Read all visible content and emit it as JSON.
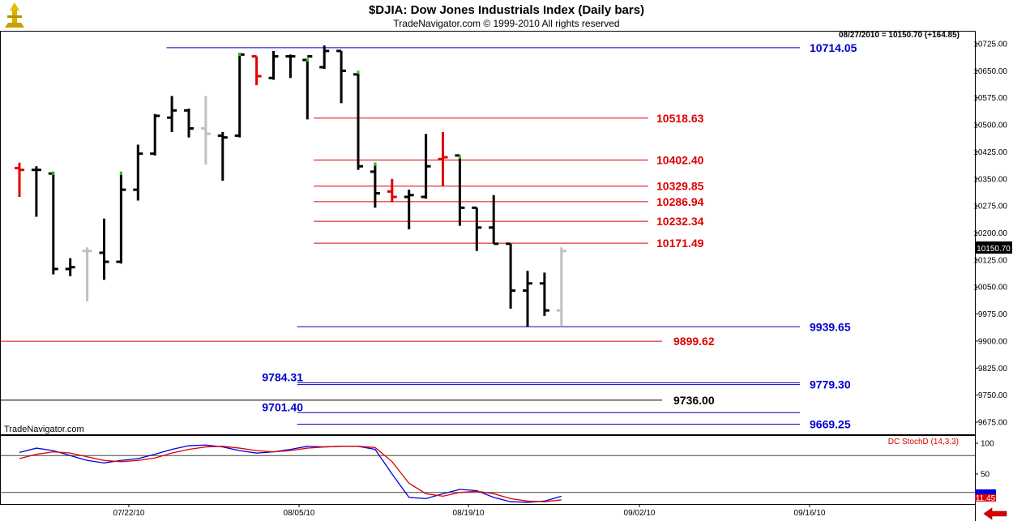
{
  "header": {
    "title": "$DJIA:  Dow Jones Industrials Index  (Daily bars)",
    "subtitle": "TradeNavigator.com © 1999-2010 All rights reserved",
    "last_quote": "08/27/2010 = 10150.70 (+164.85)",
    "watermark": "TradeNavigator.com"
  },
  "colors": {
    "up_bar": "#000000",
    "down_bar": "#000000",
    "red_bar": "#e00000",
    "gray_bar": "#c0c0c0",
    "level_blue": "#0000cc",
    "level_red": "#dd0000",
    "level_black": "#000000",
    "stoch_k": "#0000dd",
    "stoch_d": "#dd0000",
    "brand_icon": "#c8a000"
  },
  "chart_data": [
    {
      "type": "ohlc",
      "title": "$DJIA:  Dow Jones Industrials Index  (Daily bars)",
      "ylim": [
        9650,
        10745
      ],
      "y_ticks": [
        10725,
        10650,
        10575,
        10500,
        10425,
        10350,
        10275,
        10200,
        10125,
        10050,
        9975,
        9900,
        9825,
        9750,
        9675
      ],
      "y_tick_labels": [
        "10725.00",
        "10650.00",
        "10575.00",
        "10500.00",
        "10425.00",
        "10350.00",
        "10275.00",
        "10200.00",
        "10125.00",
        "10050.00",
        "9975.00",
        "9900.00",
        "9825.00",
        "9750.00",
        "9675.00"
      ],
      "x_labels": [
        "07/22/10",
        "08/05/10",
        "08/19/10",
        "09/02/10",
        "09/16/10"
      ],
      "last_price_label": "10150.70",
      "bars": [
        {
          "o": 10380,
          "h": 10395,
          "l": 10300,
          "c": 10375,
          "color": "red"
        },
        {
          "o": 10375,
          "h": 10385,
          "l": 10245,
          "c": 10375,
          "color": "black"
        },
        {
          "o": 10365,
          "h": 10370,
          "l": 10085,
          "c": 10100,
          "color": "black",
          "tick": "green"
        },
        {
          "o": 10100,
          "h": 10130,
          "l": 10080,
          "c": 10105,
          "color": "black"
        },
        {
          "o": 10150,
          "h": 10160,
          "l": 10010,
          "c": 10150,
          "color": "gray"
        },
        {
          "o": 10145,
          "h": 10240,
          "l": 10070,
          "c": 10120,
          "color": "black"
        },
        {
          "o": 10120,
          "h": 10370,
          "l": 10115,
          "c": 10320,
          "color": "black",
          "tick": "green"
        },
        {
          "o": 10320,
          "h": 10445,
          "l": 10290,
          "c": 10420,
          "color": "black"
        },
        {
          "o": 10420,
          "h": 10530,
          "l": 10415,
          "c": 10525,
          "color": "black"
        },
        {
          "o": 10520,
          "h": 10580,
          "l": 10480,
          "c": 10540,
          "color": "black"
        },
        {
          "o": 10540,
          "h": 10545,
          "l": 10465,
          "c": 10490,
          "color": "black"
        },
        {
          "o": 10490,
          "h": 10580,
          "l": 10390,
          "c": 10475,
          "color": "gray"
        },
        {
          "o": 10470,
          "h": 10480,
          "l": 10345,
          "c": 10465,
          "color": "black"
        },
        {
          "o": 10470,
          "h": 10700,
          "l": 10465,
          "c": 10695,
          "color": "black",
          "tick": "green"
        },
        {
          "o": 10690,
          "h": 10690,
          "l": 10610,
          "c": 10635,
          "color": "red"
        },
        {
          "o": 10630,
          "h": 10705,
          "l": 10625,
          "c": 10690,
          "color": "black"
        },
        {
          "o": 10690,
          "h": 10695,
          "l": 10630,
          "c": 10690,
          "color": "black"
        },
        {
          "o": 10680,
          "h": 10685,
          "l": 10515,
          "c": 10690,
          "color": "black",
          "tick": "green"
        },
        {
          "o": 10660,
          "h": 10720,
          "l": 10655,
          "c": 10705,
          "color": "black"
        },
        {
          "o": 10705,
          "h": 10705,
          "l": 10560,
          "c": 10650,
          "color": "black"
        },
        {
          "o": 10640,
          "h": 10650,
          "l": 10375,
          "c": 10385,
          "color": "black",
          "tick": "green"
        },
        {
          "o": 10370,
          "h": 10395,
          "l": 10270,
          "c": 10310,
          "color": "black",
          "tick": "green"
        },
        {
          "o": 10315,
          "h": 10350,
          "l": 10285,
          "c": 10300,
          "color": "red"
        },
        {
          "o": 10300,
          "h": 10320,
          "l": 10210,
          "c": 10305,
          "color": "black"
        },
        {
          "o": 10300,
          "h": 10475,
          "l": 10295,
          "c": 10385,
          "color": "black"
        },
        {
          "o": 10405,
          "h": 10480,
          "l": 10330,
          "c": 10410,
          "color": "red"
        },
        {
          "o": 10415,
          "h": 10415,
          "l": 10220,
          "c": 10270,
          "color": "black",
          "tick": "green"
        },
        {
          "o": 10270,
          "h": 10270,
          "l": 10150,
          "c": 10215,
          "color": "black"
        },
        {
          "o": 10215,
          "h": 10305,
          "l": 10170,
          "c": 10170,
          "color": "black"
        },
        {
          "o": 10170,
          "h": 10170,
          "l": 9990,
          "c": 10040,
          "color": "black"
        },
        {
          "o": 10040,
          "h": 10095,
          "l": 9940,
          "c": 10060,
          "color": "black"
        },
        {
          "o": 10060,
          "h": 10090,
          "l": 9970,
          "c": 9985,
          "color": "black"
        },
        {
          "o": 9985,
          "h": 10160,
          "l": 9940,
          "c": 10150,
          "color": "gray"
        }
      ],
      "levels": [
        {
          "value": 10714.05,
          "label": "10714.05",
          "color": "blue",
          "x_start": 0.17,
          "label_side": "right"
        },
        {
          "value": 10518.63,
          "label": "10518.63",
          "color": "red",
          "x_start": 0.321,
          "label_side": "mid"
        },
        {
          "value": 10402.4,
          "label": "10402.40",
          "color": "red",
          "x_start": 0.321,
          "label_side": "mid"
        },
        {
          "value": 10329.85,
          "label": "10329.85",
          "color": "red",
          "x_start": 0.321,
          "label_side": "mid"
        },
        {
          "value": 10286.94,
          "label": "10286.94",
          "color": "red",
          "x_start": 0.321,
          "label_side": "mid"
        },
        {
          "value": 10232.34,
          "label": "10232.34",
          "color": "red",
          "x_start": 0.321,
          "label_side": "mid"
        },
        {
          "value": 10171.49,
          "label": "10171.49",
          "color": "red",
          "x_start": 0.321,
          "label_side": "mid"
        },
        {
          "value": 9939.65,
          "label": "9939.65",
          "color": "blue",
          "x_start": 0.304,
          "label_side": "right"
        },
        {
          "value": 9899.62,
          "label": "9899.62",
          "color": "red",
          "x_start": 0.0,
          "label_side": "mid2"
        },
        {
          "value": 9784.31,
          "label": "9784.31",
          "color": "blue",
          "x_start": 0.304,
          "label_side": "left"
        },
        {
          "value": 9779.3,
          "label": "9779.30",
          "color": "blue",
          "x_start": 0.304,
          "label_side": "right"
        },
        {
          "value": 9736.0,
          "label": "9736.00",
          "color": "black",
          "x_start": 0.0,
          "label_side": "mid2"
        },
        {
          "value": 9701.4,
          "label": "9701.40",
          "color": "blue",
          "x_start": 0.304,
          "label_side": "left"
        },
        {
          "value": 9669.25,
          "label": "9669.25",
          "color": "blue",
          "x_start": 0.304,
          "label_side": "right"
        }
      ]
    },
    {
      "type": "line",
      "title": "DC StochD (14,3,3)",
      "ylim": [
        0,
        115
      ],
      "y_tick_labels": [
        "100",
        "50"
      ],
      "y_ticks": [
        100,
        50
      ],
      "reference_lines": [
        80,
        20
      ],
      "last_value_label": "11.45",
      "series": [
        {
          "key": "k",
          "values": [
            85,
            92,
            88,
            80,
            72,
            68,
            72,
            75,
            82,
            90,
            96,
            97,
            94,
            88,
            84,
            86,
            90,
            95,
            94,
            95,
            95,
            90,
            50,
            12,
            10,
            18,
            25,
            23,
            12,
            5,
            4,
            6,
            14
          ]
        },
        {
          "key": "d",
          "values": [
            75,
            82,
            86,
            84,
            78,
            72,
            70,
            72,
            76,
            84,
            90,
            94,
            95,
            92,
            88,
            86,
            88,
            92,
            94,
            95,
            95,
            93,
            70,
            35,
            18,
            14,
            20,
            22,
            18,
            10,
            6,
            5,
            8
          ]
        }
      ]
    }
  ]
}
